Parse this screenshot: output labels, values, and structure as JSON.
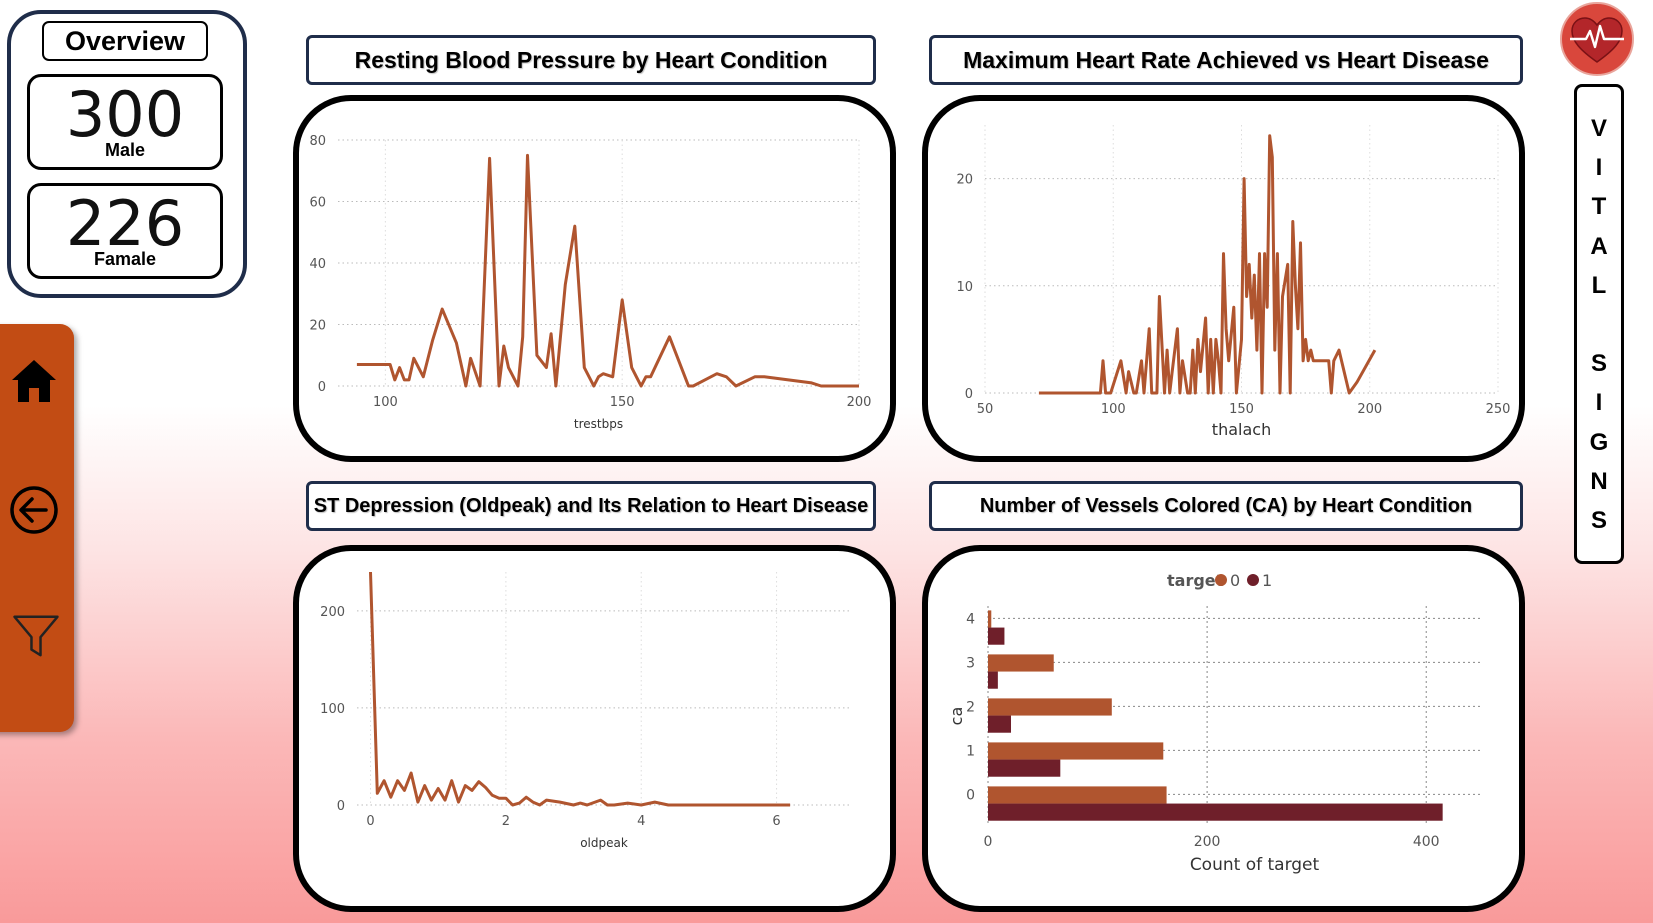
{
  "overview": {
    "title": "Overview",
    "male": {
      "count": "300",
      "label": "Male"
    },
    "female": {
      "count": "226",
      "label": "Famale"
    }
  },
  "sidebar": {
    "items": [
      {
        "icon": "home-icon"
      },
      {
        "icon": "back-arrow-icon"
      },
      {
        "icon": "filter-icon"
      }
    ]
  },
  "colors": {
    "accent": "#c24c14",
    "series0": "#b0552f",
    "series1": "#6f1f2a",
    "border": "#1f2d4a"
  },
  "vital_signs": "V\nI\nT\nA\nL\n\nS\nI\nG\nN\nS",
  "charts": {
    "trestbps": {
      "title": "Resting Blood Pressure by Heart Condition"
    },
    "thalach": {
      "title": "Maximum Heart Rate Achieved vs Heart Disease"
    },
    "oldpeak": {
      "title": "ST Depression (Oldpeak) and Its Relation to Heart Disease"
    },
    "ca": {
      "title": "Number of Vessels Colored (CA) by Heart Condition"
    }
  },
  "chart_data": [
    {
      "type": "line",
      "title": "Resting Blood Pressure by Heart Condition",
      "xlabel": "trestbps",
      "ylabel": "",
      "xlim": [
        90,
        200
      ],
      "ylim": [
        0,
        80
      ],
      "xticks": [
        "100",
        "150",
        "200"
      ],
      "yticks": [
        "0",
        "20",
        "40",
        "60",
        "80"
      ],
      "x": [
        94,
        100,
        101,
        102,
        103,
        104,
        105,
        106,
        108,
        110,
        112,
        115,
        117,
        118,
        120,
        122,
        124,
        125,
        126,
        128,
        129,
        130,
        132,
        134,
        135,
        136,
        138,
        140,
        142,
        144,
        145,
        146,
        148,
        150,
        152,
        154,
        155,
        156,
        160,
        164,
        165,
        170,
        172,
        174,
        178,
        180,
        190,
        192,
        200
      ],
      "y": [
        7,
        7,
        7,
        2,
        6,
        2,
        2,
        9,
        3,
        15,
        25,
        14,
        0,
        9,
        0,
        74,
        0,
        13,
        6,
        0,
        16,
        75,
        10,
        6,
        17,
        0,
        33,
        52,
        6,
        0,
        3,
        4,
        3,
        28,
        6,
        0,
        3,
        3,
        16,
        0,
        0,
        4,
        3,
        0,
        3,
        3,
        1,
        0,
        0
      ],
      "grid": true
    },
    {
      "type": "line",
      "title": "Maximum Heart Rate Achieved vs Heart Disease",
      "xlabel": "thalach",
      "ylabel": "",
      "xlim": [
        50,
        250
      ],
      "ylim": [
        0,
        25
      ],
      "xticks": [
        "50",
        "100",
        "150",
        "200",
        "250"
      ],
      "yticks": [
        "0",
        "10",
        "20"
      ],
      "x": [
        71,
        95,
        96,
        97,
        99,
        103,
        105,
        106,
        108,
        109,
        111,
        112,
        114,
        115,
        117,
        118,
        120,
        121,
        122,
        123,
        125,
        126,
        127,
        129,
        130,
        131,
        132,
        133,
        134,
        136,
        137,
        138,
        139,
        140,
        141,
        142,
        143,
        144,
        145,
        147,
        148,
        150,
        151,
        152,
        153,
        154,
        155,
        156,
        157,
        158,
        159,
        160,
        161,
        162,
        163,
        164,
        165,
        166,
        168,
        169,
        170,
        171,
        172,
        173,
        174,
        175,
        176,
        177,
        178,
        179,
        180,
        182,
        184,
        185,
        186,
        188,
        192,
        195,
        202
      ],
      "y": [
        0,
        0,
        3,
        0,
        0,
        3,
        0,
        2,
        0,
        0,
        3,
        0,
        6,
        0,
        0,
        9,
        0,
        4,
        0,
        2,
        6,
        0,
        3,
        0,
        0,
        4,
        0,
        5,
        2,
        7,
        0,
        5,
        0,
        5,
        3,
        0,
        13,
        6,
        3,
        8,
        0,
        5,
        20,
        9,
        12,
        7,
        11,
        4,
        13,
        0,
        13,
        8,
        24,
        22,
        4,
        13,
        0,
        9,
        12,
        0,
        16,
        10,
        6,
        14,
        3,
        5,
        3,
        4,
        3,
        3,
        3,
        3,
        3,
        0,
        3,
        4,
        0,
        1,
        4
      ],
      "grid": true
    },
    {
      "type": "line",
      "title": "ST Depression (Oldpeak) and Its Relation to Heart Disease",
      "xlabel": "oldpeak",
      "ylabel": "",
      "xlim": [
        -0.2,
        7.1
      ],
      "ylim": [
        0,
        240
      ],
      "xticks": [
        "0",
        "2",
        "4",
        "6"
      ],
      "yticks": [
        "0",
        "100",
        "200"
      ],
      "x": [
        0,
        0.1,
        0.2,
        0.3,
        0.4,
        0.5,
        0.6,
        0.7,
        0.8,
        0.9,
        1.0,
        1.1,
        1.2,
        1.3,
        1.4,
        1.5,
        1.6,
        1.7,
        1.8,
        1.9,
        2.0,
        2.1,
        2.2,
        2.3,
        2.4,
        2.5,
        2.6,
        2.8,
        3.0,
        3.1,
        3.2,
        3.4,
        3.5,
        3.6,
        3.8,
        4.0,
        4.2,
        4.4,
        5.6,
        6.2
      ],
      "y": [
        240,
        12,
        25,
        8,
        25,
        15,
        33,
        3,
        20,
        5,
        17,
        5,
        25,
        3,
        20,
        15,
        24,
        18,
        10,
        7,
        7,
        0,
        2,
        8,
        3,
        0,
        5,
        3,
        0,
        2,
        0,
        5,
        0,
        0,
        2,
        0,
        3,
        0,
        0,
        0
      ],
      "grid": true
    },
    {
      "type": "bar",
      "orientation": "horizontal",
      "title": "Number of Vessels Colored (CA) by Heart Condition",
      "xlabel": "Count of target",
      "ylabel": "ca",
      "legend_title": "target",
      "legend_position": "top",
      "categories": [
        "0",
        "1",
        "2",
        "3",
        "4"
      ],
      "series": [
        {
          "name": "0",
          "values": [
            163,
            160,
            113,
            60,
            3
          ]
        },
        {
          "name": "1",
          "values": [
            415,
            66,
            21,
            9,
            15
          ]
        }
      ],
      "xlim": [
        0,
        450
      ],
      "xticks": [
        "0",
        "200",
        "400"
      ],
      "grid": true
    }
  ]
}
